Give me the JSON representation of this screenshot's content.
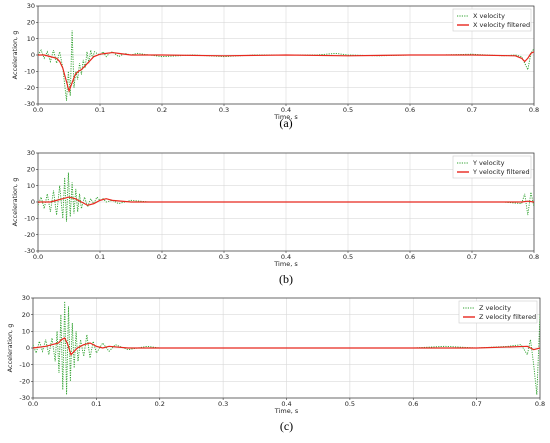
{
  "chart_data": [
    {
      "type": "line",
      "caption": "(a)",
      "xlabel": "Time, s",
      "ylabel": "Acceleration, g",
      "xlim": [
        0.0,
        0.8
      ],
      "ylim": [
        -30,
        30
      ],
      "xticks": [
        "0.0",
        "0.1",
        "0.2",
        "0.3",
        "0.4",
        "0.5",
        "0.6",
        "0.7",
        "0.8"
      ],
      "yticks": [
        "30",
        "20",
        "10",
        "0",
        "-10",
        "-20",
        "-30"
      ],
      "grid": true,
      "legend_position": "top-right",
      "series": [
        {
          "name": "X velocity",
          "style": "dotted",
          "color": "#2ca02c",
          "x": [
            0.0,
            0.005,
            0.01,
            0.015,
            0.02,
            0.025,
            0.03,
            0.035,
            0.04,
            0.043,
            0.046,
            0.049,
            0.052,
            0.055,
            0.058,
            0.061,
            0.064,
            0.067,
            0.07,
            0.073,
            0.076,
            0.079,
            0.082,
            0.085,
            0.088,
            0.091,
            0.095,
            0.1,
            0.105,
            0.11,
            0.115,
            0.12,
            0.13,
            0.14,
            0.15,
            0.16,
            0.18,
            0.2,
            0.25,
            0.3,
            0.35,
            0.4,
            0.45,
            0.48,
            0.5,
            0.55,
            0.6,
            0.65,
            0.7,
            0.75,
            0.77,
            0.78,
            0.785,
            0.79,
            0.795,
            0.8
          ],
          "values": [
            0,
            3,
            -2,
            2,
            -4,
            3,
            -5,
            2,
            -8,
            -18,
            -28,
            -10,
            -25,
            15,
            -20,
            -10,
            -15,
            -5,
            -12,
            -3,
            -8,
            2,
            -5,
            3,
            -2,
            2,
            1,
            0,
            2,
            -1,
            1,
            2,
            -1,
            1,
            0,
            1,
            0,
            -1,
            0,
            -1,
            0,
            0,
            0,
            1,
            0,
            -0.5,
            0,
            0,
            0.5,
            -0.5,
            0,
            -1,
            -5,
            -9,
            1,
            4
          ]
        },
        {
          "name": "X velocity filtered",
          "style": "solid",
          "color": "#e8281e",
          "x": [
            0.0,
            0.01,
            0.02,
            0.03,
            0.035,
            0.04,
            0.045,
            0.05,
            0.055,
            0.06,
            0.065,
            0.07,
            0.075,
            0.08,
            0.085,
            0.09,
            0.1,
            0.11,
            0.12,
            0.13,
            0.15,
            0.2,
            0.3,
            0.4,
            0.5,
            0.6,
            0.7,
            0.77,
            0.78,
            0.785,
            0.79,
            0.795,
            0.8
          ],
          "values": [
            0,
            0,
            -1,
            -2,
            -4,
            -8,
            -15,
            -22,
            -17,
            -12,
            -10,
            -9,
            -7,
            -5,
            -3,
            -1,
            0.5,
            1,
            1.5,
            1,
            0,
            0,
            -0.5,
            0,
            -0.5,
            0,
            0,
            -0.5,
            -2,
            -4,
            -2,
            1,
            2
          ]
        }
      ]
    },
    {
      "type": "line",
      "caption": "(b)",
      "xlabel": "Time, s",
      "ylabel": "Acceleration, g",
      "xlim": [
        0.0,
        0.8
      ],
      "ylim": [
        -30,
        30
      ],
      "xticks": [
        "0.0",
        "0.1",
        "0.2",
        "0.3",
        "0.4",
        "0.5",
        "0.6",
        "0.7",
        "0.8"
      ],
      "yticks": [
        "30",
        "20",
        "10",
        "0",
        "-10",
        "-20",
        "-30"
      ],
      "grid": true,
      "legend_position": "top-right",
      "series": [
        {
          "name": "Y velocity",
          "style": "dotted",
          "color": "#2ca02c",
          "x": [
            0.0,
            0.005,
            0.01,
            0.015,
            0.02,
            0.025,
            0.03,
            0.035,
            0.04,
            0.043,
            0.046,
            0.049,
            0.052,
            0.055,
            0.058,
            0.061,
            0.064,
            0.067,
            0.07,
            0.075,
            0.08,
            0.085,
            0.09,
            0.095,
            0.1,
            0.105,
            0.11,
            0.12,
            0.13,
            0.15,
            0.18,
            0.2,
            0.25,
            0.3,
            0.4,
            0.5,
            0.6,
            0.7,
            0.75,
            0.78,
            0.785,
            0.79,
            0.795,
            0.8
          ],
          "values": [
            -2,
            3,
            -4,
            5,
            -6,
            7,
            -8,
            10,
            -10,
            15,
            -12,
            18,
            -9,
            12,
            -7,
            8,
            -6,
            5,
            -4,
            3,
            -3,
            2,
            -1,
            3,
            1,
            2,
            0,
            1,
            -1,
            1,
            0,
            0,
            0,
            0,
            0,
            0,
            0,
            0,
            0,
            -1,
            5,
            -8,
            6,
            -3
          ]
        },
        {
          "name": "Y velocity filtered",
          "style": "solid",
          "color": "#e8281e",
          "x": [
            0.0,
            0.02,
            0.03,
            0.04,
            0.05,
            0.06,
            0.07,
            0.08,
            0.09,
            0.1,
            0.11,
            0.12,
            0.15,
            0.2,
            0.3,
            0.5,
            0.7,
            0.78,
            0.79,
            0.8
          ],
          "values": [
            0,
            0,
            1,
            2,
            3,
            2,
            0,
            -2,
            -1,
            1,
            2,
            1,
            0,
            0,
            0,
            0,
            0,
            0,
            0.5,
            0
          ]
        }
      ]
    },
    {
      "type": "line",
      "caption": "(c)",
      "xlabel": "Time, s",
      "ylabel": "Acceleration, g",
      "xlim": [
        0.0,
        0.8
      ],
      "ylim": [
        -30,
        30
      ],
      "xticks": [
        "0.0",
        "0.1",
        "0.2",
        "0.3",
        "0.4",
        "0.5",
        "0.6",
        "0.7",
        "0.8"
      ],
      "yticks": [
        "30",
        "20",
        "10",
        "0",
        "-10",
        "-20",
        "-30"
      ],
      "grid": true,
      "legend_position": "top-right",
      "series": [
        {
          "name": "Z velocity",
          "style": "dotted",
          "color": "#2ca02c",
          "x": [
            0.0,
            0.005,
            0.01,
            0.015,
            0.02,
            0.025,
            0.03,
            0.035,
            0.038,
            0.041,
            0.044,
            0.047,
            0.05,
            0.053,
            0.056,
            0.059,
            0.062,
            0.065,
            0.068,
            0.071,
            0.075,
            0.08,
            0.085,
            0.09,
            0.095,
            0.1,
            0.11,
            0.12,
            0.13,
            0.15,
            0.18,
            0.2,
            0.25,
            0.3,
            0.4,
            0.5,
            0.6,
            0.65,
            0.7,
            0.75,
            0.77,
            0.78,
            0.785,
            0.79,
            0.795,
            0.8
          ],
          "values": [
            2,
            -3,
            4,
            -2,
            5,
            -4,
            6,
            -8,
            10,
            -15,
            20,
            -25,
            28,
            -28,
            25,
            -20,
            15,
            -12,
            10,
            -8,
            5,
            -5,
            8,
            -6,
            4,
            -3,
            3,
            -2,
            2,
            -1,
            1,
            0,
            0,
            0,
            0,
            0,
            0,
            1,
            0,
            1,
            2,
            -4,
            5,
            -10,
            -28,
            20
          ]
        },
        {
          "name": "Z velocity filtered",
          "style": "solid",
          "color": "#e8281e",
          "x": [
            0.0,
            0.02,
            0.03,
            0.04,
            0.045,
            0.05,
            0.055,
            0.06,
            0.065,
            0.07,
            0.08,
            0.09,
            0.1,
            0.11,
            0.12,
            0.15,
            0.2,
            0.3,
            0.5,
            0.7,
            0.78,
            0.79,
            0.8
          ],
          "values": [
            0,
            1,
            2,
            3,
            5,
            6,
            2,
            -4,
            -2,
            0,
            2,
            3,
            1,
            0,
            1,
            0,
            0,
            0,
            0,
            0,
            1,
            -1,
            0
          ]
        }
      ]
    }
  ]
}
